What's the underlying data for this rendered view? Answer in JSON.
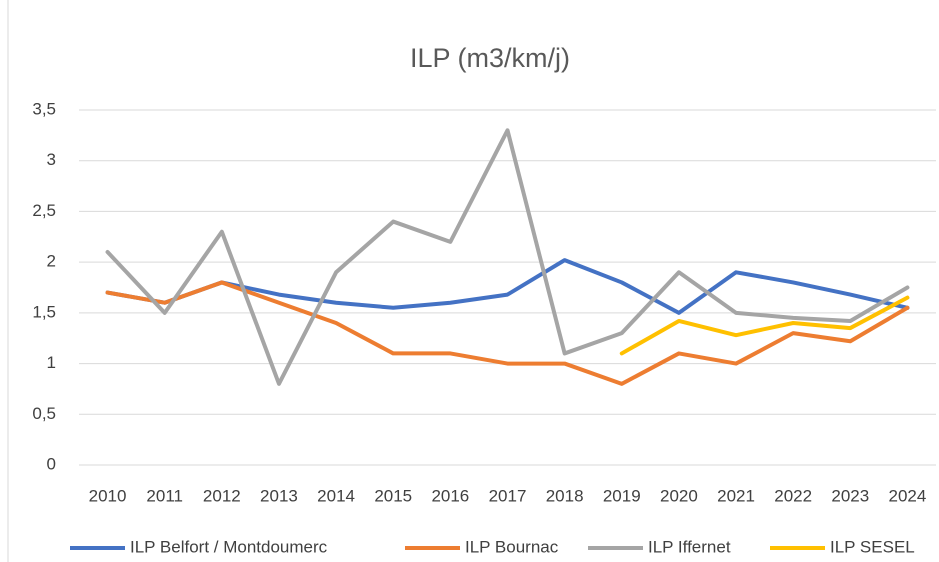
{
  "chart_data": {
    "type": "line",
    "title": "ILP (m3/km/j)",
    "categories": [
      "2010",
      "2011",
      "2012",
      "2013",
      "2014",
      "2015",
      "2016",
      "2017",
      "2018",
      "2019",
      "2020",
      "2021",
      "2022",
      "2023",
      "2024"
    ],
    "series": [
      {
        "name": "ILP Belfort / Montdoumerc",
        "color": "#4472c4",
        "values": [
          1.7,
          1.6,
          1.8,
          1.68,
          1.6,
          1.55,
          1.6,
          1.68,
          2.02,
          1.8,
          1.5,
          1.9,
          1.8,
          1.68,
          1.55
        ]
      },
      {
        "name": "ILP Bournac",
        "color": "#ed7d31",
        "values": [
          1.7,
          1.6,
          1.8,
          1.6,
          1.4,
          1.1,
          1.1,
          1.0,
          1.0,
          0.8,
          1.1,
          1.0,
          1.3,
          1.22,
          1.55
        ]
      },
      {
        "name": "ILP Iffernet",
        "color": "#a5a5a5",
        "values": [
          2.1,
          1.5,
          2.3,
          0.8,
          1.9,
          2.4,
          2.2,
          3.3,
          1.1,
          1.3,
          1.9,
          1.5,
          1.45,
          1.42,
          1.75
        ]
      },
      {
        "name": "ILP SESEL",
        "color": "#ffc000",
        "values": [
          null,
          null,
          null,
          null,
          null,
          null,
          null,
          null,
          null,
          1.1,
          1.42,
          1.28,
          1.4,
          1.35,
          1.65
        ]
      }
    ],
    "ylim": [
      0,
      3.5
    ],
    "yticks": [
      0,
      {
        "value": 0.5,
        "label": "0,5"
      },
      1,
      {
        "value": 1.5,
        "label": "1,5"
      },
      2,
      {
        "value": 2.5,
        "label": "2,5"
      },
      3,
      {
        "value": 3.5,
        "label": "3,5"
      }
    ],
    "grid": true,
    "legend": "bottom"
  }
}
